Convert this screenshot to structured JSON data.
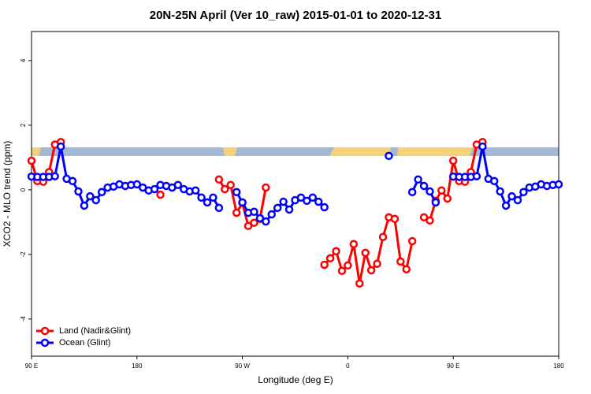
{
  "chart_data": {
    "type": "line",
    "title": "20N-25N April (Ver 10_raw)   2015-01-01 to 2020-12-31",
    "x_label": "Longitude (deg E)",
    "y_label": "XCO2 - MLO trend (ppm)",
    "x": [
      90,
      95,
      100,
      105,
      110,
      115,
      120,
      125,
      130,
      135,
      140,
      145,
      150,
      155,
      160,
      165,
      170,
      175,
      180,
      185,
      190,
      195,
      200,
      205,
      210,
      215,
      220,
      225,
      230,
      235,
      240,
      245,
      250,
      255,
      260,
      265,
      270,
      275,
      280,
      285,
      290,
      295,
      300,
      305,
      310,
      315,
      320,
      325,
      330,
      335,
      340,
      345,
      350,
      355,
      360,
      365,
      370,
      375,
      380,
      385,
      390,
      395,
      400,
      405,
      410,
      415,
      420,
      425,
      430,
      435,
      440,
      445,
      450,
      455,
      460,
      465,
      470,
      475,
      480,
      485,
      490,
      495,
      500,
      505,
      510,
      515,
      520,
      525,
      530,
      535,
      540
    ],
    "series": [
      {
        "name": "Land (Nadir&Glint)",
        "color": "#ff0000",
        "values": [
          0.9,
          0.27,
          0.25,
          0.55,
          1.4,
          1.48,
          null,
          null,
          null,
          null,
          null,
          null,
          null,
          null,
          null,
          null,
          null,
          null,
          null,
          null,
          null,
          null,
          -0.15,
          null,
          null,
          null,
          null,
          null,
          null,
          null,
          null,
          null,
          0.32,
          0.02,
          0.15,
          -0.71,
          -0.41,
          -1.12,
          -1.02,
          -0.9,
          0.07,
          null,
          null,
          null,
          null,
          null,
          null,
          null,
          null,
          null,
          -2.32,
          -2.12,
          -1.9,
          -2.51,
          -2.34,
          -1.68,
          -2.9,
          -1.95,
          -2.49,
          -2.29,
          -1.46,
          -0.85,
          -0.9,
          -2.22,
          -2.46,
          -1.59,
          null,
          -0.85,
          -0.95,
          -0.34,
          -0.02,
          -0.27,
          0.9,
          0.27,
          0.25,
          0.55,
          1.4,
          1.48,
          null,
          null,
          null,
          null,
          null,
          null,
          null,
          null,
          null,
          null,
          null,
          null,
          null
        ]
      },
      {
        "name": "Ocean (Glint)",
        "color": "#0000ff",
        "values": [
          0.41,
          0.4,
          0.4,
          0.4,
          0.42,
          1.34,
          0.34,
          0.27,
          -0.05,
          -0.49,
          -0.2,
          -0.32,
          -0.07,
          0.07,
          0.1,
          0.17,
          0.12,
          0.15,
          0.17,
          0.07,
          -0.02,
          0.02,
          0.15,
          0.12,
          0.07,
          0.15,
          0.02,
          -0.05,
          -0.02,
          -0.24,
          -0.39,
          -0.24,
          -0.56,
          null,
          null,
          -0.07,
          -0.39,
          -0.71,
          -0.68,
          -0.88,
          -0.98,
          -0.76,
          -0.56,
          -0.37,
          -0.61,
          -0.32,
          -0.24,
          -0.34,
          -0.24,
          -0.37,
          -0.54,
          null,
          null,
          null,
          null,
          null,
          null,
          null,
          null,
          null,
          null,
          1.05,
          null,
          null,
          null,
          -0.07,
          0.32,
          0.12,
          -0.05,
          -0.39,
          null,
          null,
          0.41,
          0.4,
          0.4,
          0.4,
          0.42,
          1.34,
          0.34,
          0.27,
          -0.05,
          -0.49,
          -0.2,
          -0.32,
          -0.07,
          0.07,
          0.1,
          0.17,
          0.12,
          0.15,
          0.17
        ]
      }
    ],
    "xlim": [
      90,
      540
    ],
    "xticks": [
      {
        "value": 90,
        "label": "90 E"
      },
      180,
      {
        "value": 270,
        "label": "90 W"
      },
      {
        "value": 360,
        "label": "0"
      },
      {
        "value": 450,
        "label": "90 E"
      },
      {
        "value": 540,
        "label": "180"
      }
    ],
    "ylim": [
      -5.15,
      4.9
    ],
    "yticks": [
      -4,
      -2,
      0,
      2,
      4
    ],
    "legend": "bottom-left"
  }
}
